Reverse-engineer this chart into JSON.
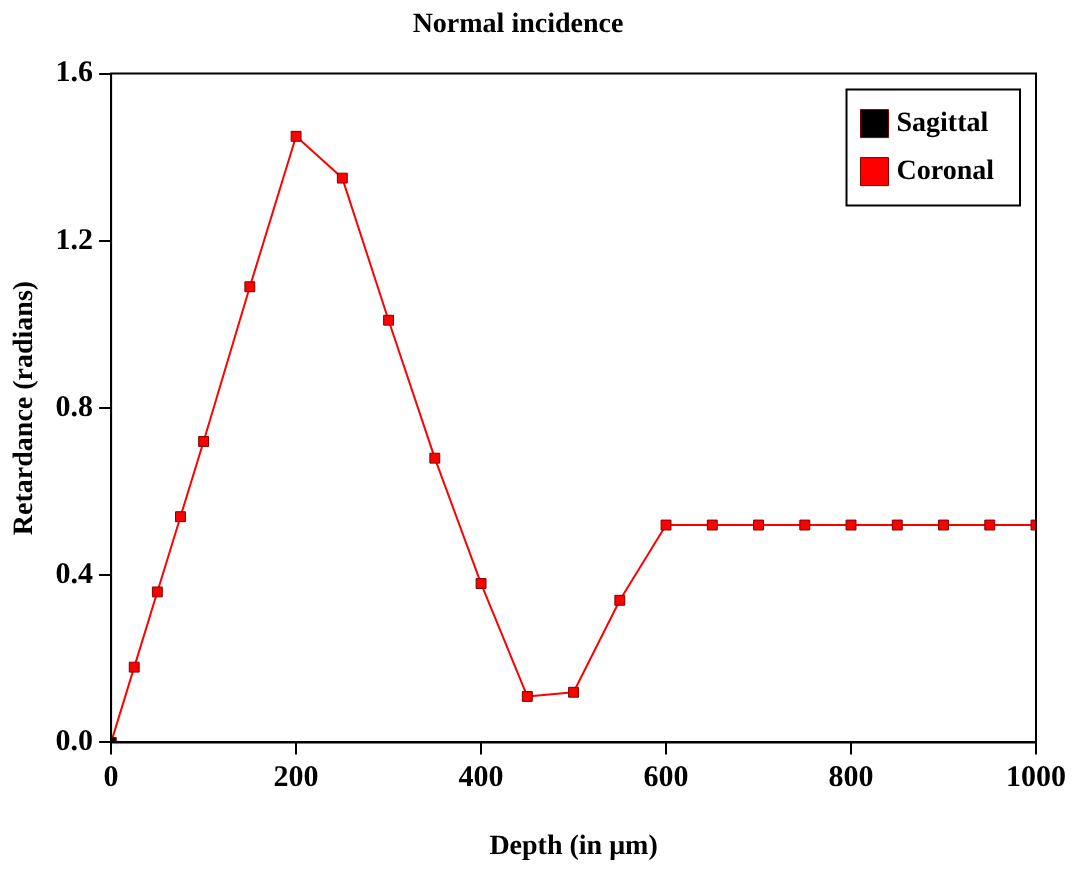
{
  "chart_data": {
    "type": "line",
    "title": "Normal incidence",
    "xlabel": "Depth (in μm)",
    "ylabel": "Retardance (radians)",
    "x": [
      0,
      25,
      50,
      75,
      100,
      150,
      200,
      250,
      300,
      350,
      400,
      450,
      500,
      550,
      600,
      650,
      700,
      750,
      800,
      850,
      900,
      950,
      1000
    ],
    "series": [
      {
        "name": "Sagittal",
        "color": "#000000",
        "values": [
          0.0,
          null,
          null,
          null,
          null,
          null,
          null,
          null,
          null,
          null,
          null,
          null,
          null,
          null,
          null,
          null,
          null,
          null,
          null,
          null,
          null,
          null,
          null
        ]
      },
      {
        "name": "Coronal",
        "color": "#ff0000",
        "values": [
          0.0,
          0.18,
          0.36,
          0.54,
          0.72,
          1.09,
          1.45,
          1.35,
          1.01,
          0.68,
          0.38,
          0.11,
          0.12,
          0.34,
          0.52,
          0.52,
          0.52,
          0.52,
          0.52,
          0.52,
          0.52,
          0.52,
          0.52
        ]
      }
    ],
    "xlim": [
      0,
      1000
    ],
    "xticks": [
      0,
      200,
      400,
      600,
      800,
      1000
    ],
    "ylim": [
      0,
      1.6
    ],
    "yticks": [
      {
        "value": 0,
        "label": "0.0"
      },
      {
        "value": 0.4,
        "label": "0.4"
      },
      {
        "value": 0.8,
        "label": "0.8"
      },
      {
        "value": 1.2,
        "label": "1.2"
      },
      {
        "value": 1.6,
        "label": "1.6"
      }
    ],
    "grid": false,
    "legend": "top right",
    "marker": "square",
    "line_style": "solid"
  }
}
